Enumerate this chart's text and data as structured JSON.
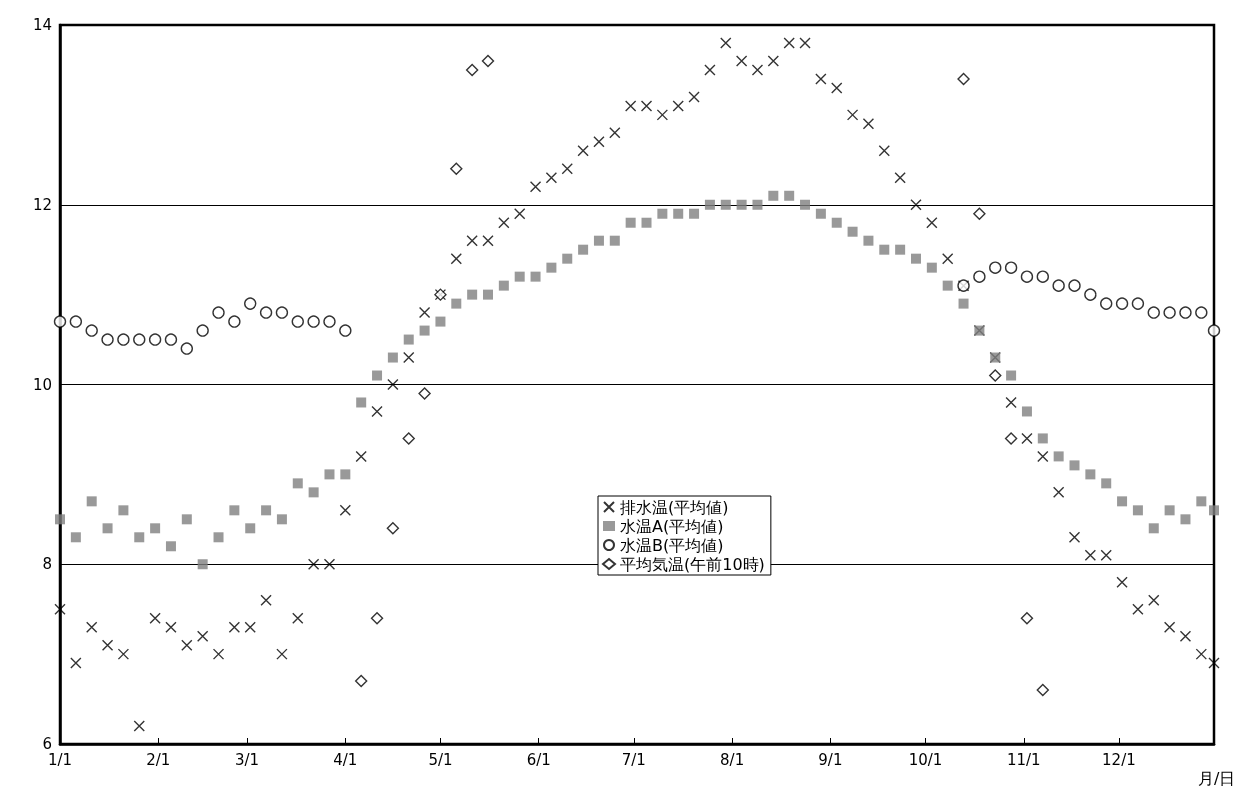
{
  "chart_data": {
    "type": "scatter",
    "xlabel": "月/日",
    "x": [
      "--01-01",
      "--01-06",
      "--01-11",
      "--01-16",
      "--01-21",
      "--01-26",
      "--01-31",
      "--02-05",
      "--02-10",
      "--02-15",
      "--02-20",
      "--02-25",
      "--03-02",
      "--03-07",
      "--03-12",
      "--03-17",
      "--03-22",
      "--03-27",
      "--04-01",
      "--04-06",
      "--04-11",
      "--04-16",
      "--04-21",
      "--04-26",
      "--05-01",
      "--05-06",
      "--05-11",
      "--05-16",
      "--05-21",
      "--05-26",
      "--05-31",
      "--06-05",
      "--06-10",
      "--06-15",
      "--06-20",
      "--06-25",
      "--06-30",
      "--07-05",
      "--07-10",
      "--07-15",
      "--07-20",
      "--07-25",
      "--07-30",
      "--08-04",
      "--08-09",
      "--08-14",
      "--08-19",
      "--08-24",
      "--08-29",
      "--09-03",
      "--09-08",
      "--09-13",
      "--09-18",
      "--09-23",
      "--09-28",
      "--10-03",
      "--10-08",
      "--10-13",
      "--10-18",
      "--10-23",
      "--10-28",
      "--11-02",
      "--11-07",
      "--11-12",
      "--11-17",
      "--11-22",
      "--11-27",
      "--12-02",
      "--12-07",
      "--12-12",
      "--12-17",
      "--12-22",
      "--12-27",
      "--12-31"
    ],
    "series": [
      {
        "name": "排水温(平均値)",
        "color": "#000000",
        "marker": "cross",
        "values": [
          7.5,
          6.9,
          7.3,
          7.1,
          7.0,
          6.2,
          7.4,
          7.3,
          7.1,
          7.2,
          7.0,
          7.3,
          7.3,
          7.6,
          7.0,
          7.4,
          8.0,
          8.0,
          8.6,
          9.2,
          9.7,
          10.0,
          10.3,
          10.8,
          11.0,
          11.4,
          11.6,
          11.6,
          11.8,
          11.9,
          12.2,
          12.3,
          12.4,
          12.6,
          12.7,
          12.8,
          13.1,
          13.1,
          13.0,
          13.1,
          13.2,
          13.5,
          13.8,
          13.6,
          13.5,
          13.6,
          13.8,
          13.8,
          13.4,
          13.3,
          13.0,
          12.9,
          12.6,
          12.3,
          12.0,
          11.8,
          11.4,
          11.1,
          10.6,
          10.3,
          9.8,
          9.4,
          9.2,
          8.8,
          8.3,
          8.1,
          8.1,
          7.8,
          7.5,
          7.6,
          7.3,
          7.2,
          7.0,
          6.9
        ]
      },
      {
        "name": "水温A(平均値)",
        "color": "#808080",
        "marker": "square",
        "values": [
          8.5,
          8.3,
          8.7,
          8.4,
          8.6,
          8.3,
          8.4,
          8.2,
          8.5,
          8.0,
          8.3,
          8.6,
          8.4,
          8.6,
          8.5,
          8.9,
          8.8,
          9.0,
          9.0,
          9.8,
          10.1,
          10.3,
          10.5,
          10.6,
          10.7,
          10.9,
          11.0,
          11.0,
          11.1,
          11.2,
          11.2,
          11.3,
          11.4,
          11.5,
          11.6,
          11.6,
          11.8,
          11.8,
          11.9,
          11.9,
          11.9,
          12.0,
          12.0,
          12.0,
          12.0,
          12.1,
          12.1,
          12.0,
          11.9,
          11.8,
          11.7,
          11.6,
          11.5,
          11.5,
          11.4,
          11.3,
          11.1,
          10.9,
          10.6,
          10.3,
          10.1,
          9.7,
          9.4,
          9.2,
          9.1,
          9.0,
          8.9,
          8.7,
          8.6,
          8.4,
          8.6,
          8.5,
          8.7,
          8.6
        ]
      },
      {
        "name": "水温B(平均値)",
        "color": "#000000",
        "marker": "circle",
        "values": [
          10.7,
          10.7,
          10.6,
          10.5,
          10.5,
          10.5,
          10.5,
          10.5,
          10.4,
          10.6,
          10.8,
          10.7,
          10.9,
          10.8,
          10.8,
          10.7,
          10.7,
          10.7,
          10.6,
          null,
          null,
          null,
          null,
          null,
          null,
          null,
          null,
          null,
          null,
          null,
          null,
          null,
          null,
          null,
          null,
          null,
          null,
          null,
          null,
          null,
          null,
          null,
          null,
          null,
          null,
          null,
          null,
          null,
          null,
          null,
          null,
          null,
          null,
          null,
          null,
          null,
          null,
          11.1,
          11.2,
          11.3,
          11.3,
          11.2,
          11.2,
          11.1,
          11.1,
          11.0,
          10.9,
          10.9,
          10.9,
          10.8,
          10.8,
          10.8,
          10.8,
          10.6
        ]
      },
      {
        "name": "平均気温(午前10時)",
        "color": "#000000",
        "marker": "diamond",
        "values": [
          null,
          null,
          null,
          null,
          null,
          null,
          null,
          null,
          null,
          null,
          null,
          null,
          null,
          null,
          null,
          null,
          null,
          null,
          null,
          6.7,
          7.4,
          8.4,
          9.4,
          9.9,
          11.0,
          12.4,
          13.5,
          13.6,
          null,
          null,
          null,
          null,
          null,
          null,
          null,
          null,
          null,
          null,
          null,
          null,
          null,
          null,
          null,
          null,
          null,
          null,
          null,
          null,
          null,
          null,
          null,
          null,
          null,
          null,
          null,
          null,
          null,
          13.4,
          11.9,
          10.1,
          9.4,
          7.4,
          6.6,
          null,
          null,
          null,
          null,
          null,
          null,
          null,
          null,
          null,
          null,
          null
        ]
      }
    ],
    "xlim": [
      "--01-01",
      "--12-31"
    ],
    "xticks": [
      {
        "value": "--01-01",
        "label": "1/1"
      },
      {
        "value": "--02-01",
        "label": "2/1"
      },
      {
        "value": "--03-01",
        "label": "3/1"
      },
      {
        "value": "--04-01",
        "label": "4/1"
      },
      {
        "value": "--05-01",
        "label": "5/1"
      },
      {
        "value": "--06-01",
        "label": "6/1"
      },
      {
        "value": "--07-01",
        "label": "7/1"
      },
      {
        "value": "--08-01",
        "label": "8/1"
      },
      {
        "value": "--09-01",
        "label": "9/1"
      },
      {
        "value": "--10-01",
        "label": "10/1"
      },
      {
        "value": "--11-01",
        "label": "11/1"
      },
      {
        "value": "--12-01",
        "label": "12/1"
      }
    ],
    "ylim": [
      6,
      14
    ],
    "yticks": [
      6,
      8,
      10,
      12,
      14
    ],
    "grid": "y",
    "legend": "bottom"
  }
}
